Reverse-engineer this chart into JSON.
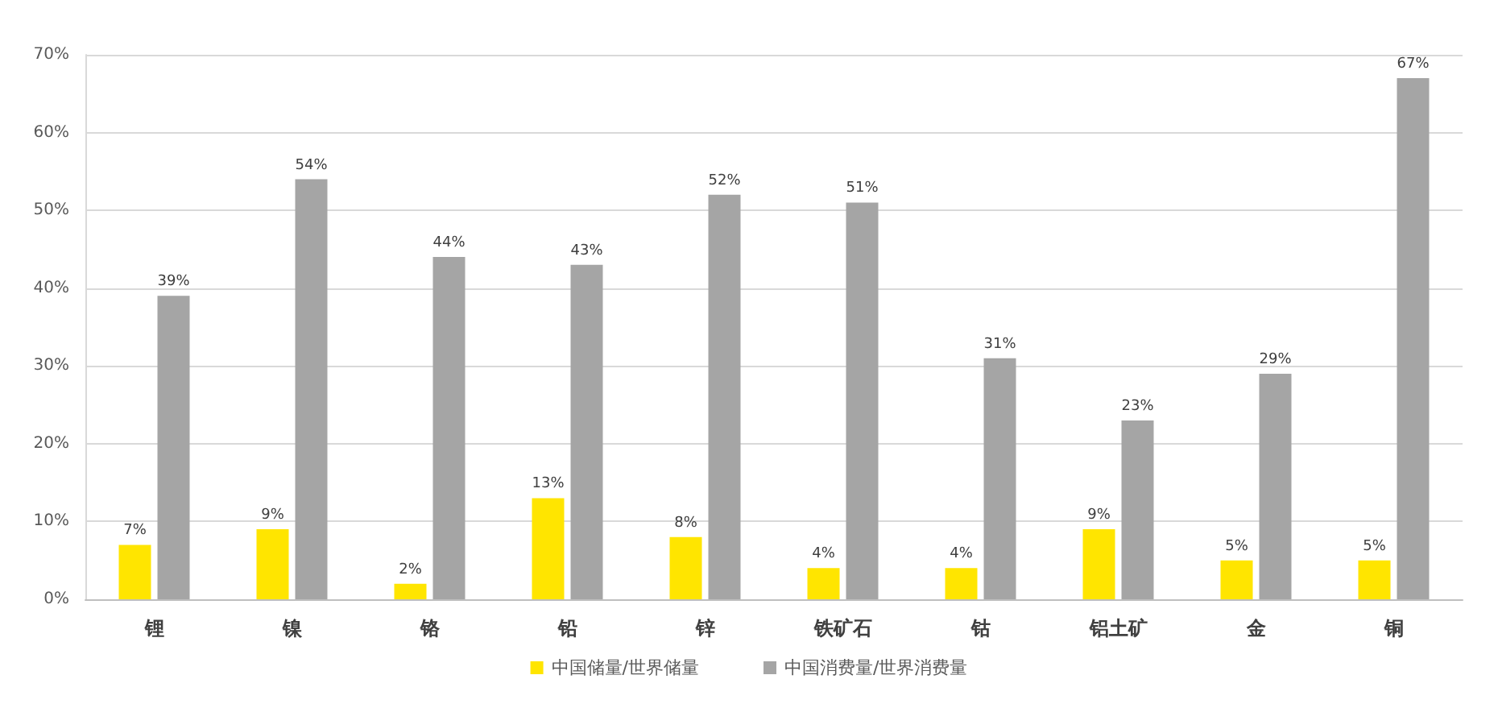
{
  "chart_data": {
    "type": "bar",
    "categories": [
      "锂",
      "镍",
      "铬",
      "铅",
      "锌",
      "铁矿石",
      "钴",
      "铝土矿",
      "金",
      "铜"
    ],
    "series": [
      {
        "name": "中国储量/世界储量",
        "color": "#ffe500",
        "values": [
          7,
          9,
          2,
          13,
          8,
          4,
          4,
          9,
          5,
          5
        ],
        "value_labels": [
          "7%",
          "9%",
          "2%",
          "13%",
          "8%",
          "4%",
          "4%",
          "9%",
          "5%",
          "5%"
        ]
      },
      {
        "name": "中国消费量/世界消费量",
        "color": "#a5a5a5",
        "values": [
          39,
          54,
          44,
          43,
          52,
          51,
          31,
          23,
          29,
          67
        ],
        "value_labels": [
          "39%",
          "54%",
          "44%",
          "43%",
          "52%",
          "51%",
          "31%",
          "23%",
          "29%",
          "67%"
        ]
      }
    ],
    "ylim": [
      0,
      70
    ],
    "yticks": [
      {
        "value": 0,
        "label": "0%"
      },
      {
        "value": 10,
        "label": "10%"
      },
      {
        "value": 20,
        "label": "20%"
      },
      {
        "value": 30,
        "label": "30%"
      },
      {
        "value": 40,
        "label": "40%"
      },
      {
        "value": 50,
        "label": "50%"
      },
      {
        "value": 60,
        "label": "60%"
      },
      {
        "value": 70,
        "label": "70%"
      }
    ],
    "grid": "y",
    "legend": "bottom"
  }
}
